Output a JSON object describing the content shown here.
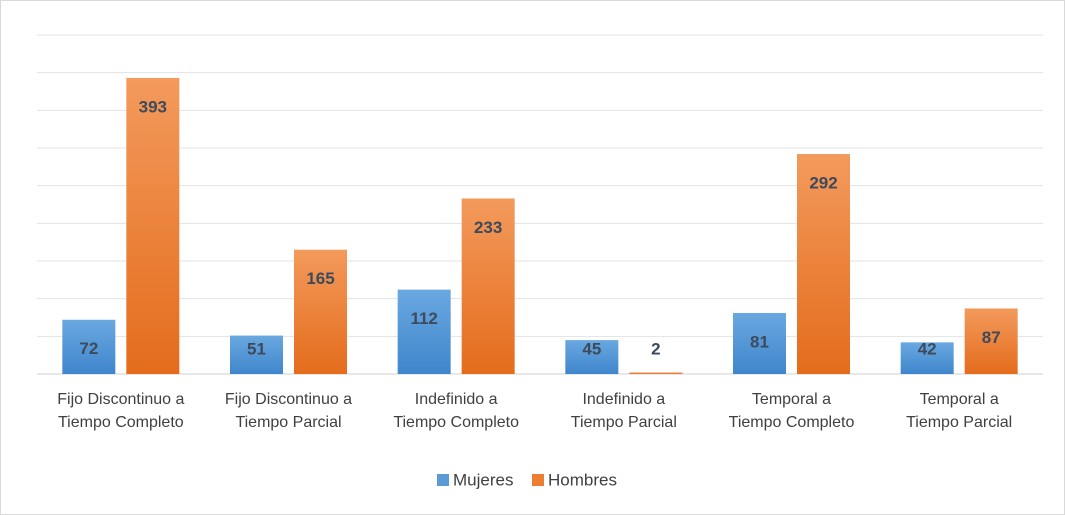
{
  "chart_data": {
    "type": "bar",
    "categories": [
      "Fijo Discontinuo a\nTiempo Completo",
      "Fijo Discontinuo a\nTiempo Parcial",
      "Indefinido a\nTiempo Completo",
      "Indefinido a\nTiempo Parcial",
      "Temporal a\nTiempo Completo",
      "Temporal a\nTiempo Parcial"
    ],
    "series": [
      {
        "name": "Mujeres",
        "color": "#5b9bd5",
        "values": [
          72,
          51,
          112,
          45,
          81,
          42
        ]
      },
      {
        "name": "Hombres",
        "color": "#ed7d31",
        "values": [
          393,
          165,
          233,
          2,
          292,
          87
        ]
      }
    ],
    "ylim": [
      0,
      450
    ],
    "yticks": [
      0,
      50,
      100,
      150,
      200,
      250,
      300,
      350,
      400,
      450
    ],
    "grid": true,
    "legend": "bottom"
  }
}
